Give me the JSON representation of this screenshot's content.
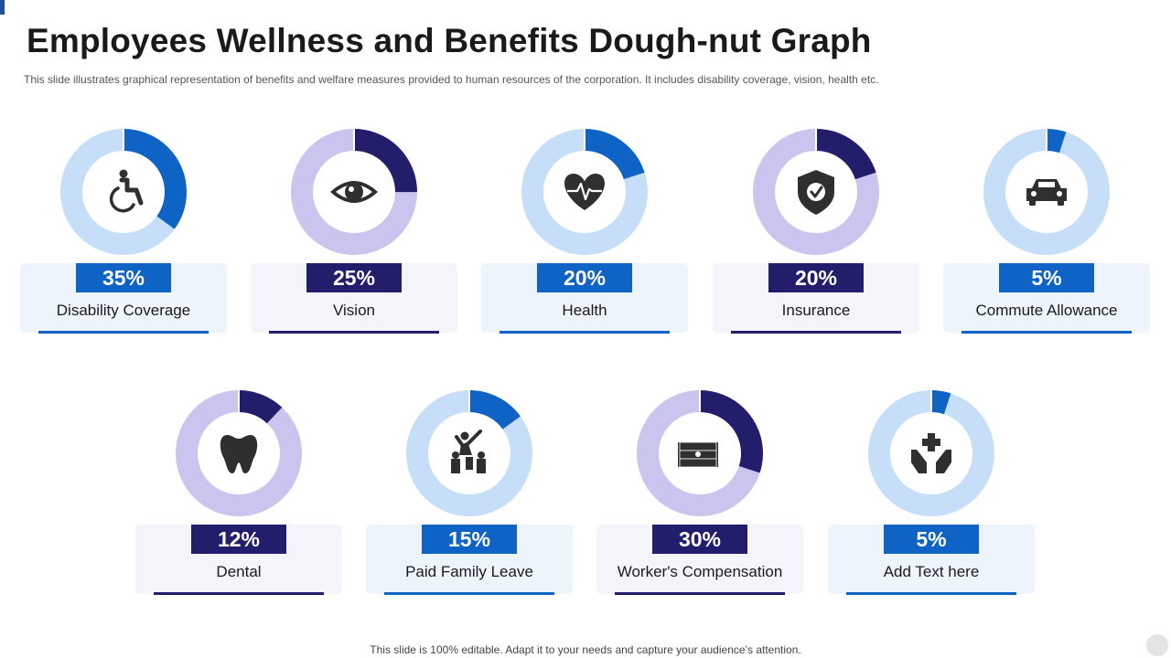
{
  "title": "Employees Wellness and Benefits Dough-nut Graph",
  "subtitle": "This slide illustrates graphical representation of benefits and welfare measures provided to human resources of the corporation. It includes disability coverage, vision, health etc.",
  "footer": "This slide is 100% editable. Adapt it to your needs and capture your audience’s attention.",
  "colors": {
    "blue_accent": "#0e63c4",
    "light_blue_track": "#c6def8",
    "navy_accent": "#231e6b",
    "lavender_track": "#c9c5ee"
  },
  "chart_data": {
    "type": "donut",
    "title": "Employees Wellness and Benefits Dough-nut Graph",
    "unit": "%",
    "categories": [
      "Disability Coverage",
      "Vision",
      "Health",
      "Insurance",
      "Commute Allowance",
      "Dental",
      "Paid Family Leave",
      "Worker's Compensation",
      "Add Text here"
    ],
    "values": [
      35,
      25,
      20,
      20,
      5,
      12,
      15,
      30,
      5
    ],
    "items": [
      {
        "label": "Disability Coverage",
        "value": 35,
        "value_label": "35%",
        "icon": "wheelchair-icon",
        "scheme": "blue"
      },
      {
        "label": "Vision",
        "value": 25,
        "value_label": "25%",
        "icon": "eye-icon",
        "scheme": "navy"
      },
      {
        "label": "Health",
        "value": 20,
        "value_label": "20%",
        "icon": "heart-pulse-icon",
        "scheme": "blue"
      },
      {
        "label": "Insurance",
        "value": 20,
        "value_label": "20%",
        "icon": "shield-check-icon",
        "scheme": "navy"
      },
      {
        "label": "Commute Allowance",
        "value": 5,
        "value_label": "5%",
        "icon": "car-icon",
        "scheme": "blue"
      },
      {
        "label": "Dental",
        "value": 12,
        "value_label": "12%",
        "icon": "tooth-icon",
        "scheme": "navy"
      },
      {
        "label": "Paid Family Leave",
        "value": 15,
        "value_label": "15%",
        "icon": "family-icon",
        "scheme": "blue"
      },
      {
        "label": "Worker's Compensation",
        "value": 30,
        "value_label": "30%",
        "icon": "money-stack-icon",
        "scheme": "navy"
      },
      {
        "label": "Add Text here",
        "value": 5,
        "value_label": "5%",
        "icon": "medical-hands-icon",
        "scheme": "blue"
      }
    ]
  }
}
